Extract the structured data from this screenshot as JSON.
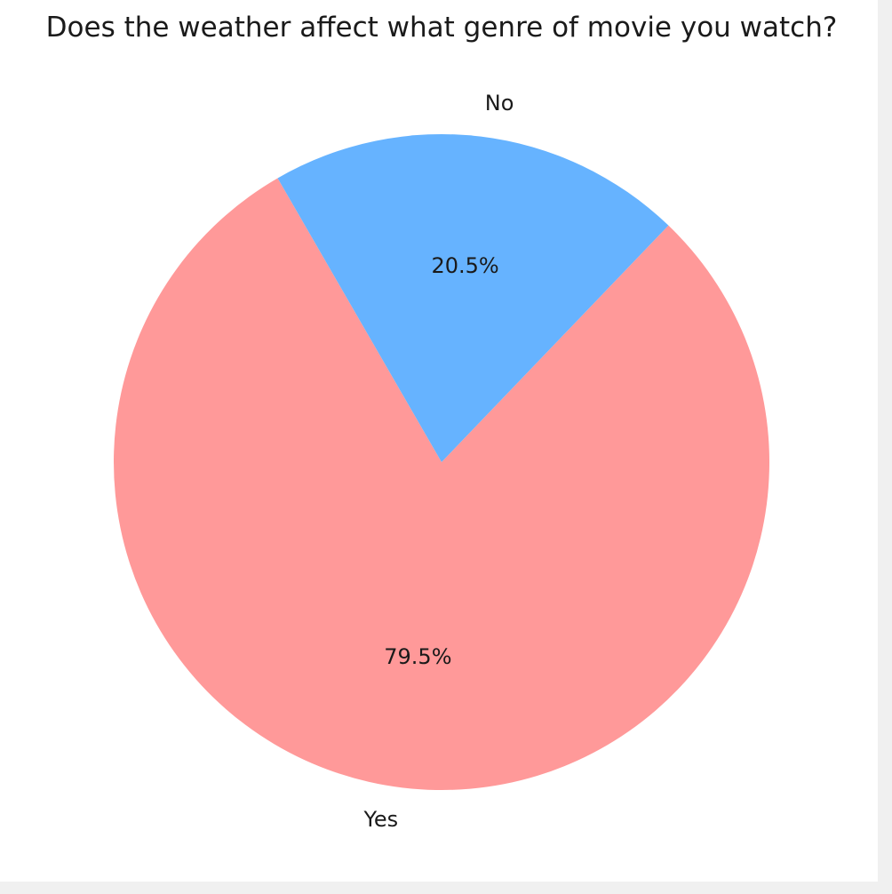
{
  "chart_data": {
    "type": "pie",
    "title": "Does the weather affect what genre of movie you watch?",
    "categories": [
      "Yes",
      "No"
    ],
    "values": [
      79.5,
      20.5
    ],
    "value_labels": [
      "79.5%",
      "20.5%"
    ],
    "colors": [
      "#ff9999",
      "#66b3ff"
    ],
    "start_angle_deg": 120,
    "direction": "counterclockwise",
    "legend": "none"
  }
}
